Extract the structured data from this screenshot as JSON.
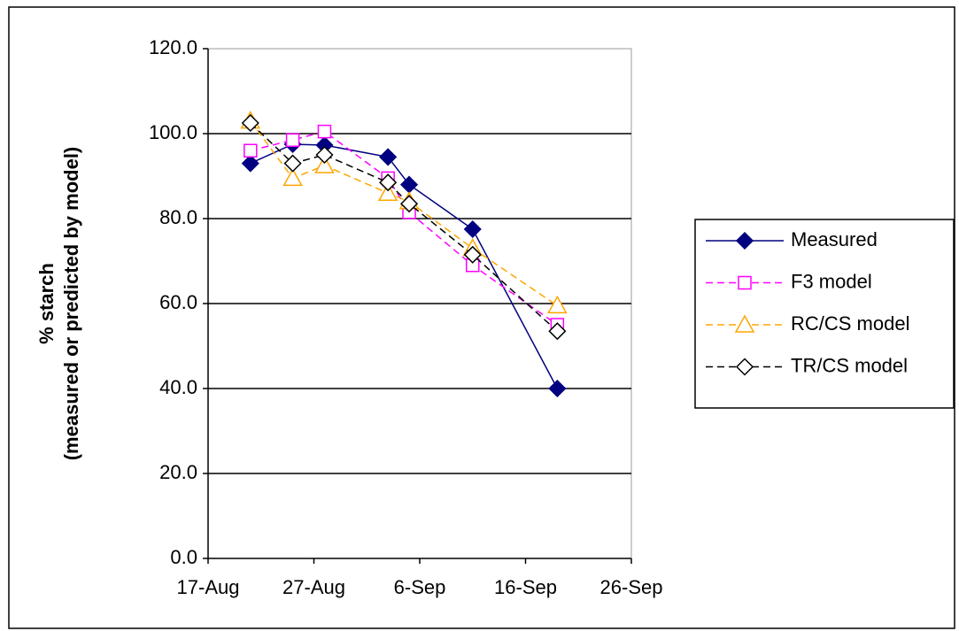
{
  "chart_data": {
    "type": "line",
    "ylabel": [
      "% starch",
      "(measured or predicted by model)"
    ],
    "x": [
      "21-Aug",
      "25-Aug",
      "28-Aug",
      "3-Sep",
      "5-Sep",
      "11-Sep",
      "19-Sep"
    ],
    "series": [
      {
        "name": "Measured",
        "color": "#000080",
        "marker": "diamond-filled",
        "linestyle": "solid",
        "values": [
          93,
          97.5,
          97.3,
          94.5,
          88,
          77.5,
          40
        ]
      },
      {
        "name": "F3 model",
        "color": "#ff00ff",
        "marker": "square-open",
        "linestyle": "dashed",
        "values": [
          96,
          98.5,
          100.5,
          89.5,
          81.5,
          69,
          55
        ]
      },
      {
        "name": "RC/CS model",
        "color": "#ffa500",
        "marker": "triangle-open",
        "linestyle": "dashed",
        "values": [
          103,
          89.5,
          92.5,
          86,
          84,
          73,
          59.5
        ]
      },
      {
        "name": "TR/CS model",
        "color": "#000000",
        "marker": "diamond-open",
        "linestyle": "dashed",
        "values": [
          102.5,
          93,
          95,
          88.5,
          83.5,
          71.5,
          53.5
        ]
      }
    ],
    "xlim": [
      "17-Aug",
      "26-Sep"
    ],
    "xticks": [
      "17-Aug",
      "27-Aug",
      "6-Sep",
      "16-Sep",
      "26-Sep"
    ],
    "ylim": [
      0,
      120
    ],
    "yticks": [
      {
        "value": 0,
        "label": "0.0"
      },
      {
        "value": 20,
        "label": "20.0"
      },
      {
        "value": 40,
        "label": "40.0"
      },
      {
        "value": 60,
        "label": "60.0"
      },
      {
        "value": 80,
        "label": "80.0"
      },
      {
        "value": 100,
        "label": "100.0"
      },
      {
        "value": 120,
        "label": "120.0"
      }
    ],
    "grid": true,
    "legend": "right"
  }
}
